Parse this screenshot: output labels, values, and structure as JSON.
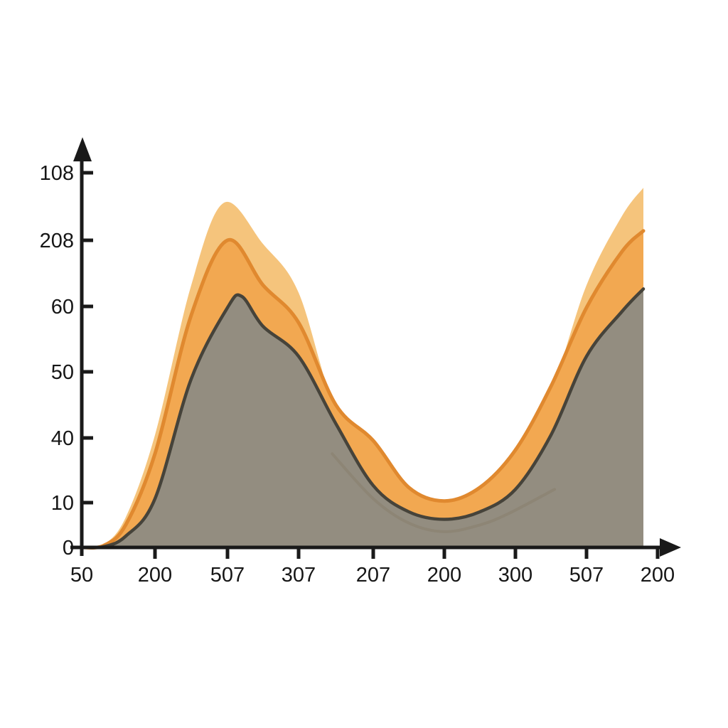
{
  "page": {
    "background_color": "#ffffff",
    "title": ""
  },
  "chart_data": {
    "type": "area",
    "title": "",
    "xlabel": "",
    "ylabel": "",
    "legend": null,
    "grid": false,
    "axes": {
      "color": "#1a1a1a",
      "arrowheads": true,
      "x_tick_labels": [
        "50",
        "200",
        "507",
        "307",
        "207",
        "200",
        "300",
        "507",
        "200"
      ],
      "y_tick_labels_bottom_to_top": [
        "0",
        "10",
        "40",
        "50",
        "60",
        "208",
        "108"
      ]
    },
    "value_scale": {
      "min": 0,
      "max": 100,
      "note_top_value_at_tick": "108"
    },
    "series": [
      {
        "name": "light-orange-band",
        "fill": "#f5c47c",
        "stroke": "none",
        "stroke_width": 0,
        "opacity": 1,
        "points": [
          [
            0,
            0
          ],
          [
            0.3,
            0.8
          ],
          [
            0.6,
            8
          ],
          [
            1,
            30
          ],
          [
            1.5,
            70
          ],
          [
            1.95,
            92
          ],
          [
            2.5,
            81
          ],
          [
            3,
            68
          ],
          [
            3.5,
            36.5
          ],
          [
            4,
            27
          ],
          [
            4.5,
            15
          ],
          [
            5,
            11.2
          ],
          [
            5.5,
            15
          ],
          [
            6,
            24.5
          ],
          [
            6.5,
            41.5
          ],
          [
            7,
            70
          ],
          [
            7.5,
            88.5
          ],
          [
            7.8,
            96
          ]
        ]
      },
      {
        "name": "mid-orange-band",
        "fill": "#f2a851",
        "stroke": "#e0892f",
        "stroke_width": 5,
        "opacity": 1,
        "points": [
          [
            0,
            0
          ],
          [
            0.3,
            0.5
          ],
          [
            0.6,
            6
          ],
          [
            1,
            25
          ],
          [
            1.5,
            62
          ],
          [
            2,
            82
          ],
          [
            2.5,
            70
          ],
          [
            3,
            60
          ],
          [
            3.5,
            38
          ],
          [
            4,
            28.5
          ],
          [
            4.5,
            16
          ],
          [
            5,
            12.4
          ],
          [
            5.5,
            16
          ],
          [
            6,
            26
          ],
          [
            6.5,
            43
          ],
          [
            7,
            64
          ],
          [
            7.5,
            79
          ],
          [
            7.8,
            84.5
          ]
        ]
      },
      {
        "name": "gray-band",
        "fill": "#938d80",
        "stroke": "#46433a",
        "stroke_width": 4.5,
        "opacity": 1,
        "points": [
          [
            0,
            0
          ],
          [
            0.3,
            0.2
          ],
          [
            0.6,
            3
          ],
          [
            1,
            13
          ],
          [
            1.5,
            45
          ],
          [
            2,
            64
          ],
          [
            2.2,
            67
          ],
          [
            2.5,
            59
          ],
          [
            3,
            51
          ],
          [
            3.5,
            33
          ],
          [
            4,
            16.5
          ],
          [
            4.5,
            9.5
          ],
          [
            5,
            7.5
          ],
          [
            5.5,
            9.5
          ],
          [
            6,
            15.5
          ],
          [
            6.5,
            30
          ],
          [
            7,
            51
          ],
          [
            7.5,
            63
          ],
          [
            7.8,
            69
          ]
        ]
      },
      {
        "name": "ghost-arc",
        "fill": "none",
        "stroke": "#857b64",
        "stroke_width": 4,
        "opacity": 0.4,
        "points": [
          [
            3.45,
            25
          ],
          [
            4,
            13
          ],
          [
            4.5,
            6.5
          ],
          [
            5,
            4.2
          ],
          [
            5.5,
            6
          ],
          [
            5.9,
            9
          ],
          [
            6.55,
            15.5
          ]
        ]
      }
    ]
  }
}
